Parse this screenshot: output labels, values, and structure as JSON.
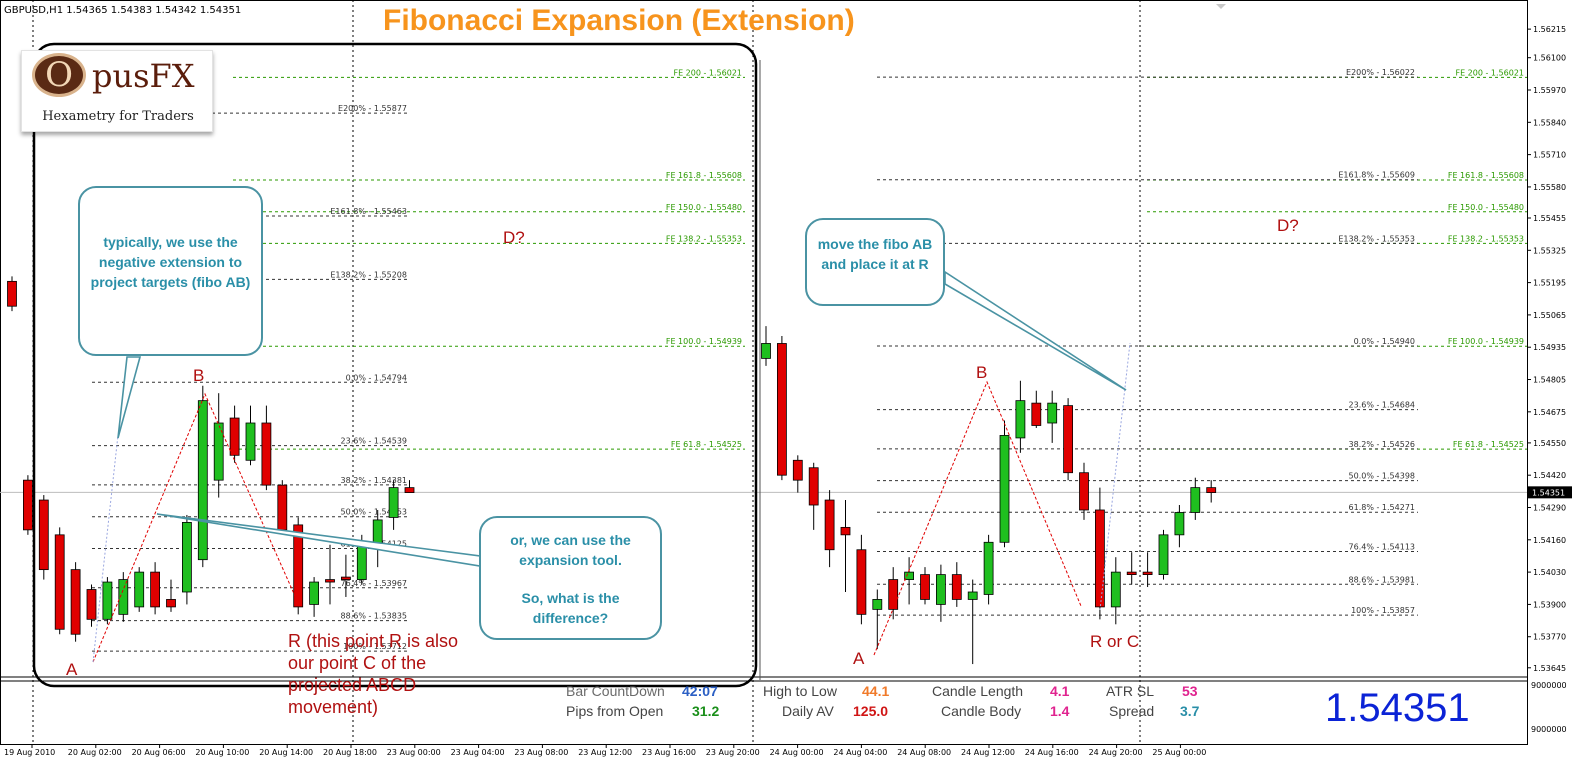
{
  "header": {
    "symbol_label": "GBPUSD,H1  1.54365 1.54383 1.54342 1.54351",
    "title": "Fibonacci Expansion (Extension)"
  },
  "logo": {
    "letter": "O",
    "name": "pusFX",
    "tagline": "Hexametry for Traders"
  },
  "callouts": {
    "left_top": "typically, we use the negative extension to project targets (fibo AB)",
    "left_bottom_line1": "or, we can use the expansion tool.",
    "left_bottom_line2": "So, what is the difference?",
    "right_top": "move the fibo AB and place it at R"
  },
  "points": {
    "left_A": "A",
    "left_B": "B",
    "left_D": "D?",
    "left_R_note": "R (this point R is also our point C of the projected ABCD movement)",
    "right_A": "A",
    "right_B": "B",
    "right_D": "D?",
    "right_RC": "R or C"
  },
  "left_fe_levels": [
    {
      "label": "FE 200 - 1.56021",
      "price": 1.56021
    },
    {
      "label": "FE 161.8 - 1.55608",
      "price": 1.55608
    },
    {
      "label": "FE 150.0 - 1.55480",
      "price": 1.5548
    },
    {
      "label": "FE 138.2 - 1.55353",
      "price": 1.55353
    },
    {
      "label": "FE 100.0 - 1.54939",
      "price": 1.54939
    },
    {
      "label": "FE 61.8 - 1.54525",
      "price": 1.54525
    }
  ],
  "left_fib_levels": [
    {
      "label": "E200% - 1.55877",
      "price": 1.55877
    },
    {
      "label": "E161.8% - 1.55463",
      "price": 1.55463
    },
    {
      "label": "E138.2% - 1.55208",
      "price": 1.55208
    },
    {
      "label": "0.0% - 1.54794",
      "price": 1.54794
    },
    {
      "label": "23.6% - 1.54539",
      "price": 1.54539
    },
    {
      "label": "38.2% - 1.54381",
      "price": 1.54381
    },
    {
      "label": "50.0% - 1.54253",
      "price": 1.54253
    },
    {
      "label": "61.8% - 1.54125",
      "price": 1.54125
    },
    {
      "label": "76.4% - 1.53967",
      "price": 1.53967
    },
    {
      "label": "88.6% - 1.53835",
      "price": 1.53835
    },
    {
      "label": "100% - 1.53712",
      "price": 1.53712
    }
  ],
  "right_fe_levels": [
    {
      "label": "FE 200 - 1.56021",
      "price": 1.56021
    },
    {
      "label": "FE 161.8 - 1.55608",
      "price": 1.55608
    },
    {
      "label": "FE 150.0 - 1.55480",
      "price": 1.5548
    },
    {
      "label": "FE 138.2 - 1.55353",
      "price": 1.55353
    },
    {
      "label": "FE 100.0 - 1.54939",
      "price": 1.54939
    },
    {
      "label": "FE 61.8 - 1.54525",
      "price": 1.54525
    }
  ],
  "right_fib_levels": [
    {
      "label": "E200% - 1.56022",
      "price": 1.56022
    },
    {
      "label": "E161.8% - 1.55609",
      "price": 1.55609
    },
    {
      "label": "E138.2% - 1.55353",
      "price": 1.55353
    },
    {
      "label": "0.0% - 1.54940",
      "price": 1.5494
    },
    {
      "label": "23.6% - 1.54684",
      "price": 1.54684
    },
    {
      "label": "38.2% - 1.54526",
      "price": 1.54526
    },
    {
      "label": "50.0% - 1.54398",
      "price": 1.54398
    },
    {
      "label": "61.8% - 1.54271",
      "price": 1.54271
    },
    {
      "label": "76.4% - 1.54113",
      "price": 1.54113
    },
    {
      "label": "88.6% - 1.53981",
      "price": 1.53981
    },
    {
      "label": "100% - 1.53857",
      "price": 1.53857
    }
  ],
  "price_axis": [
    "1.56215",
    "1.56100",
    "1.55970",
    "1.55840",
    "1.55710",
    "1.55580",
    "1.55455",
    "1.55325",
    "1.55195",
    "1.55065",
    "1.54935",
    "1.54805",
    "1.54675",
    "1.54550",
    "1.54420",
    "1.54290",
    "1.54160",
    "1.54030",
    "1.53900",
    "1.53770",
    "1.53645"
  ],
  "current_price_tag": "1.54351",
  "indicator_axis": [
    "9000000",
    "9000000"
  ],
  "time_axis": [
    "19 Aug 2010",
    "20 Aug 02:00",
    "20 Aug 06:00",
    "20 Aug 10:00",
    "20 Aug 14:00",
    "20 Aug 18:00",
    "23 Aug 00:00",
    "23 Aug 04:00",
    "23 Aug 08:00",
    "23 Aug 12:00",
    "23 Aug 16:00",
    "23 Aug 20:00",
    "24 Aug 00:00",
    "24 Aug 04:00",
    "24 Aug 08:00",
    "24 Aug 12:00",
    "24 Aug 16:00",
    "24 Aug 20:00",
    "25 Aug 00:00"
  ],
  "stats": {
    "bar_countdown_label": "Bar CountDown",
    "bar_countdown_value": "42:07",
    "pips_from_open_label": "Pips from Open",
    "pips_from_open_value": "31.2",
    "high_to_low_label": "High to Low",
    "high_to_low_value": "44.1",
    "daily_av_label": "Daily AV",
    "daily_av_value": "125.0",
    "candle_length_label": "Candle Length",
    "candle_length_value": "4.1",
    "candle_body_label": "Candle Body",
    "candle_body_value": "1.4",
    "atr_sl_label": "ATR SL",
    "atr_sl_value": "53",
    "spread_label": "Spread",
    "spread_value": "3.7",
    "big_price": "1.54351"
  },
  "colors": {
    "bull": "#1fbf1f",
    "bear": "#e00000",
    "fe_line": "#2b9a00",
    "fib_line": "#333333",
    "callout": "#2a8fa8",
    "title": "#f7941d"
  },
  "candles_left": [
    [
      1.552,
      1.5522,
      1.5508,
      1.551
    ],
    [
      1.544,
      1.5442,
      1.5418,
      1.542
    ],
    [
      1.5432,
      1.5434,
      1.54,
      1.5404
    ],
    [
      1.5418,
      1.5421,
      1.5378,
      1.538
    ],
    [
      1.5404,
      1.5407,
      1.5375,
      1.5378
    ],
    [
      1.5396,
      1.5398,
      1.5381,
      1.5384
    ],
    [
      1.5384,
      1.5401,
      1.5382,
      1.5399
    ],
    [
      1.5386,
      1.5403,
      1.5383,
      1.54
    ],
    [
      1.5389,
      1.5405,
      1.5387,
      1.5403
    ],
    [
      1.5403,
      1.5407,
      1.5386,
      1.5389
    ],
    [
      1.5392,
      1.54,
      1.5387,
      1.5389
    ],
    [
      1.5395,
      1.5426,
      1.539,
      1.5423
    ],
    [
      1.5408,
      1.5478,
      1.5405,
      1.5472
    ],
    [
      1.544,
      1.5475,
      1.5433,
      1.5463
    ],
    [
      1.5465,
      1.547,
      1.5447,
      1.545
    ],
    [
      1.5448,
      1.547,
      1.5446,
      1.5463
    ],
    [
      1.5463,
      1.547,
      1.5436,
      1.5438
    ],
    [
      1.5438,
      1.544,
      1.5419,
      1.542
    ],
    [
      1.5422,
      1.5425,
      1.5386,
      1.5389
    ],
    [
      1.539,
      1.5401,
      1.5385,
      1.5399
    ],
    [
      1.54,
      1.5414,
      1.539,
      1.5399
    ],
    [
      1.5401,
      1.541,
      1.5393,
      1.54
    ],
    [
      1.54,
      1.5418,
      1.5398,
      1.5414
    ],
    [
      1.5414,
      1.5428,
      1.5405,
      1.5424
    ],
    [
      1.5425,
      1.544,
      1.542,
      1.5437
    ],
    [
      1.5437,
      1.544,
      1.5435,
      1.5435
    ]
  ],
  "candles_right": [
    [
      1.5489,
      1.5502,
      1.5486,
      1.5495
    ],
    [
      1.5495,
      1.5498,
      1.544,
      1.5442
    ],
    [
      1.5448,
      1.545,
      1.5435,
      1.544
    ],
    [
      1.5445,
      1.5447,
      1.542,
      1.543
    ],
    [
      1.5432,
      1.5436,
      1.5405,
      1.5412
    ],
    [
      1.5421,
      1.5432,
      1.5395,
      1.5418
    ],
    [
      1.5412,
      1.5418,
      1.5382,
      1.5386
    ],
    [
      1.5388,
      1.5396,
      1.5372,
      1.5392
    ],
    [
      1.54,
      1.5405,
      1.5384,
      1.5388
    ],
    [
      1.54,
      1.5409,
      1.539,
      1.5403
    ],
    [
      1.5402,
      1.5405,
      1.539,
      1.5392
    ],
    [
      1.539,
      1.5406,
      1.5383,
      1.5402
    ],
    [
      1.5402,
      1.5407,
      1.5389,
      1.5392
    ],
    [
      1.5392,
      1.54,
      1.5366,
      1.5395
    ],
    [
      1.5394,
      1.5418,
      1.539,
      1.5415
    ],
    [
      1.5415,
      1.5464,
      1.5413,
      1.5458
    ],
    [
      1.5457,
      1.548,
      1.5451,
      1.5472
    ],
    [
      1.5471,
      1.5476,
      1.5461,
      1.5462
    ],
    [
      1.5463,
      1.5476,
      1.5455,
      1.5471
    ],
    [
      1.547,
      1.5473,
      1.544,
      1.5443
    ],
    [
      1.5443,
      1.5447,
      1.5424,
      1.5428
    ],
    [
      1.5428,
      1.5437,
      1.5384,
      1.5389
    ],
    [
      1.5389,
      1.5409,
      1.5382,
      1.5403
    ],
    [
      1.5403,
      1.5411,
      1.5398,
      1.5402
    ],
    [
      1.5403,
      1.5411,
      1.5397,
      1.5402
    ],
    [
      1.5402,
      1.542,
      1.54,
      1.5418
    ],
    [
      1.5418,
      1.543,
      1.5413,
      1.5427
    ],
    [
      1.5427,
      1.5441,
      1.5424,
      1.5437
    ],
    [
      1.5437,
      1.544,
      1.5431,
      1.5435
    ]
  ]
}
